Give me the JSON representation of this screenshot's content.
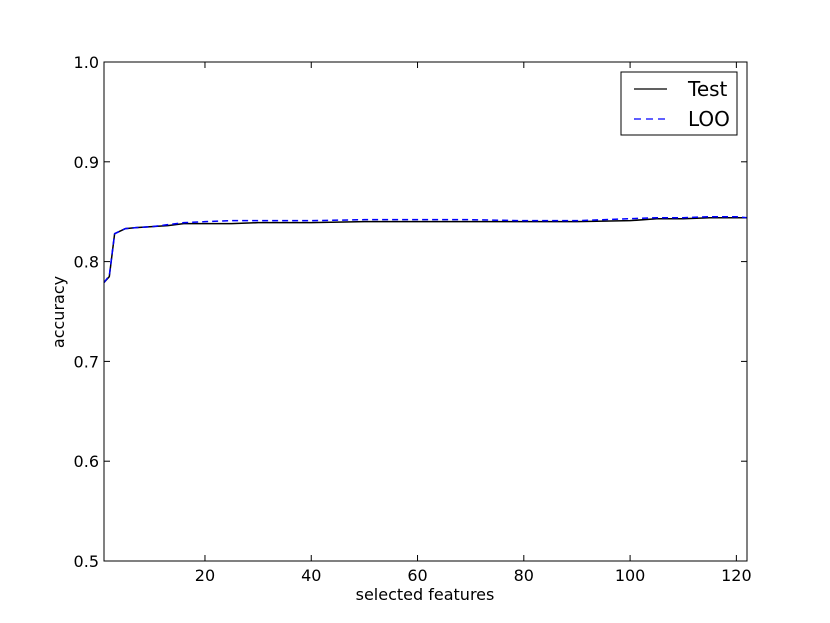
{
  "chart_data": {
    "type": "line",
    "xlabel": "selected features",
    "ylabel": "accuracy",
    "xlim": [
      1,
      122
    ],
    "ylim": [
      0.5,
      1.0
    ],
    "xticks": [
      20,
      40,
      60,
      80,
      100,
      120
    ],
    "yticks": [
      0.5,
      0.6,
      0.7,
      0.8,
      0.9,
      1.0
    ],
    "xtick_labels": [
      "20",
      "40",
      "60",
      "80",
      "100",
      "120"
    ],
    "ytick_labels": [
      "0.5",
      "0.6",
      "0.7",
      "0.8",
      "0.9",
      "1.0"
    ],
    "grid": false,
    "legend_position": "top-right",
    "series": [
      {
        "name": "Test",
        "color": "#000000",
        "style": "solid",
        "x": [
          1,
          2,
          3,
          5,
          7,
          10,
          13,
          16,
          20,
          25,
          30,
          40,
          50,
          60,
          70,
          80,
          90,
          100,
          105,
          110,
          115,
          120,
          122
        ],
        "y": [
          0.779,
          0.785,
          0.828,
          0.833,
          0.834,
          0.835,
          0.836,
          0.838,
          0.838,
          0.838,
          0.839,
          0.839,
          0.84,
          0.84,
          0.84,
          0.84,
          0.84,
          0.841,
          0.843,
          0.843,
          0.844,
          0.844,
          0.844
        ]
      },
      {
        "name": "LOO",
        "color": "#0000ff",
        "style": "dashed",
        "x": [
          1,
          2,
          3,
          5,
          7,
          10,
          13,
          16,
          20,
          25,
          30,
          40,
          50,
          60,
          70,
          80,
          90,
          100,
          105,
          110,
          115,
          120,
          122
        ],
        "y": [
          0.779,
          0.786,
          0.828,
          0.833,
          0.834,
          0.835,
          0.837,
          0.839,
          0.84,
          0.841,
          0.841,
          0.841,
          0.842,
          0.842,
          0.842,
          0.841,
          0.841,
          0.843,
          0.844,
          0.844,
          0.845,
          0.845,
          0.844
        ]
      }
    ]
  }
}
